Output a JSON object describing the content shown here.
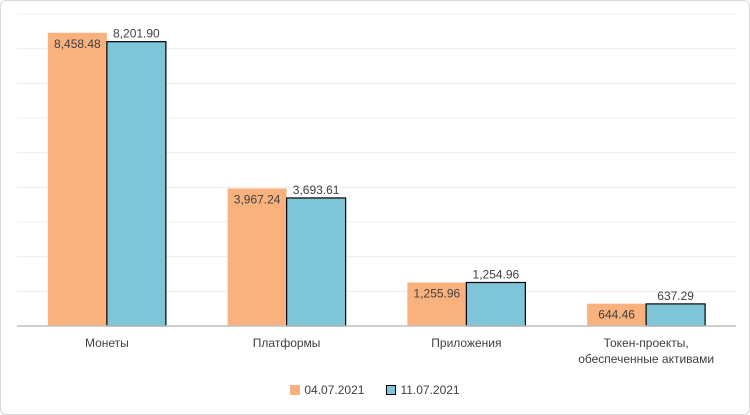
{
  "chart_data": {
    "type": "bar",
    "categories": [
      "Монеты",
      "Платформы",
      "Приложения",
      "Токен-проекты, обеспеченные активами"
    ],
    "category_lines": [
      [
        "Монеты"
      ],
      [
        "Платформы"
      ],
      [
        "Приложения"
      ],
      [
        "Токен-проекты,",
        "обеспеченные активами"
      ]
    ],
    "series": [
      {
        "name": "04.07.2021",
        "values": [
          8458.48,
          3967.24,
          1255.96,
          644.46
        ],
        "labels": [
          "8,458.48",
          "3,967.24",
          "1,255.96",
          "644.46"
        ],
        "color": "#F9B27E"
      },
      {
        "name": "11.07.2021",
        "values": [
          8201.9,
          3693.61,
          1254.96,
          637.29
        ],
        "labels": [
          "8,201.90",
          "3,693.61",
          "1,254.96",
          "637.29"
        ],
        "color": "#7FC5D8",
        "border": "#000000"
      }
    ],
    "ylim": [
      0,
      9000
    ],
    "grid": true,
    "legend_position": "bottom"
  }
}
